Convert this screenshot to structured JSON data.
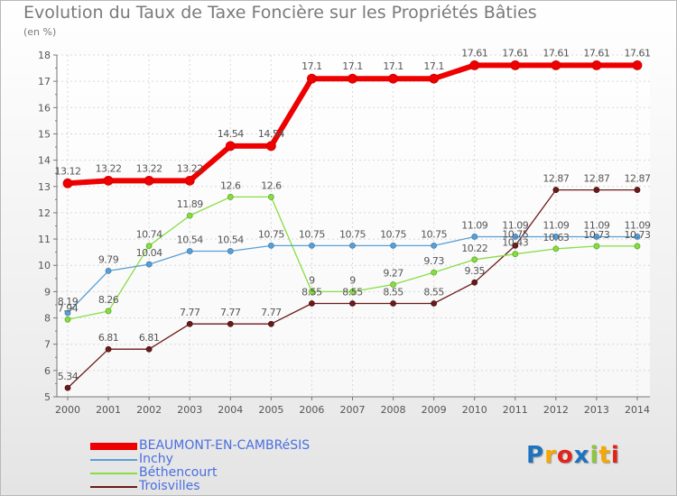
{
  "colors": {
    "BEAUMONT-EN-CAMBRéSIS": "#ee0000",
    "Inchy": "#5a9fd4",
    "Béthencourt": "#88dd44",
    "Troisvilles": "#6b1a1a",
    "axis": "#777777",
    "grid": "#d8d8d8",
    "label": "#555555"
  },
  "brand": {
    "letters": [
      "P",
      "r",
      "o",
      "x",
      "i",
      "t",
      "i"
    ],
    "colors": [
      "#1e73be",
      "#f7a800",
      "#e2231a",
      "#1e73be",
      "#8dc63f",
      "#f7a800",
      "#e2231a"
    ]
  },
  "chart_data": {
    "type": "line",
    "title": "Evolution du Taux de Taxe Foncière sur les Propriétés Bâties",
    "ylabel": "(en %)",
    "xlabel": "",
    "ylim": [
      5,
      18
    ],
    "yticks": [
      "5",
      "6",
      "7",
      "8",
      "9",
      "10",
      "11",
      "12",
      "13",
      "14",
      "15",
      "16",
      "17",
      "18"
    ],
    "x": [
      "2000",
      "2001",
      "2002",
      "2003",
      "2004",
      "2005",
      "2006",
      "2007",
      "2008",
      "2009",
      "2010",
      "2011",
      "2012",
      "2013",
      "2014"
    ],
    "legend_position": "bottom-left",
    "series": [
      {
        "name": "BEAUMONT-EN-CAMBRéSIS",
        "values": [
          13.12,
          13.22,
          13.22,
          13.22,
          14.54,
          14.54,
          17.1,
          17.1,
          17.1,
          17.1,
          17.61,
          17.61,
          17.61,
          17.61,
          17.61
        ],
        "labels": [
          "13.12",
          "13.22",
          "13.22",
          "13.22",
          "14.54",
          "14.54",
          "17.1",
          "17.1",
          "17.1",
          "17.1",
          "17.61",
          "17.61",
          "17.61",
          "17.61",
          "17.61"
        ]
      },
      {
        "name": "Inchy",
        "values": [
          8.19,
          9.79,
          10.04,
          10.54,
          10.54,
          10.75,
          10.75,
          10.75,
          10.75,
          10.75,
          11.09,
          11.09,
          11.09,
          11.09,
          11.09
        ],
        "labels": [
          "8.19",
          "9.79",
          "10.04",
          "10.54",
          "10.54",
          "10.75",
          "10.75",
          "10.75",
          "10.75",
          "10.75",
          "11.09",
          "11.09",
          "11.09",
          "11.09",
          "11.09"
        ]
      },
      {
        "name": "Béthencourt",
        "values": [
          7.94,
          8.26,
          10.74,
          11.89,
          12.6,
          12.6,
          9,
          9,
          9.27,
          9.73,
          10.22,
          10.43,
          10.63,
          10.73,
          10.73
        ],
        "labels": [
          "7.94",
          "8.26",
          "10.74",
          "11.89",
          "12.6",
          "12.6",
          "9",
          "9",
          "9.27",
          "9.73",
          "10.22",
          "10.43",
          "10.63",
          "10.73",
          "10.73"
        ]
      },
      {
        "name": "Troisvilles",
        "values": [
          5.34,
          6.81,
          6.81,
          7.77,
          7.77,
          7.77,
          8.55,
          8.55,
          8.55,
          8.55,
          9.35,
          10.75,
          12.87,
          12.87,
          12.87
        ],
        "labels": [
          "5.34",
          "6.81",
          "6.81",
          "7.77",
          "7.77",
          "7.77",
          "8.55",
          "8.55",
          "8.55",
          "8.55",
          "9.35",
          "10.75",
          "12.87",
          "12.87",
          "12.87"
        ]
      }
    ]
  }
}
